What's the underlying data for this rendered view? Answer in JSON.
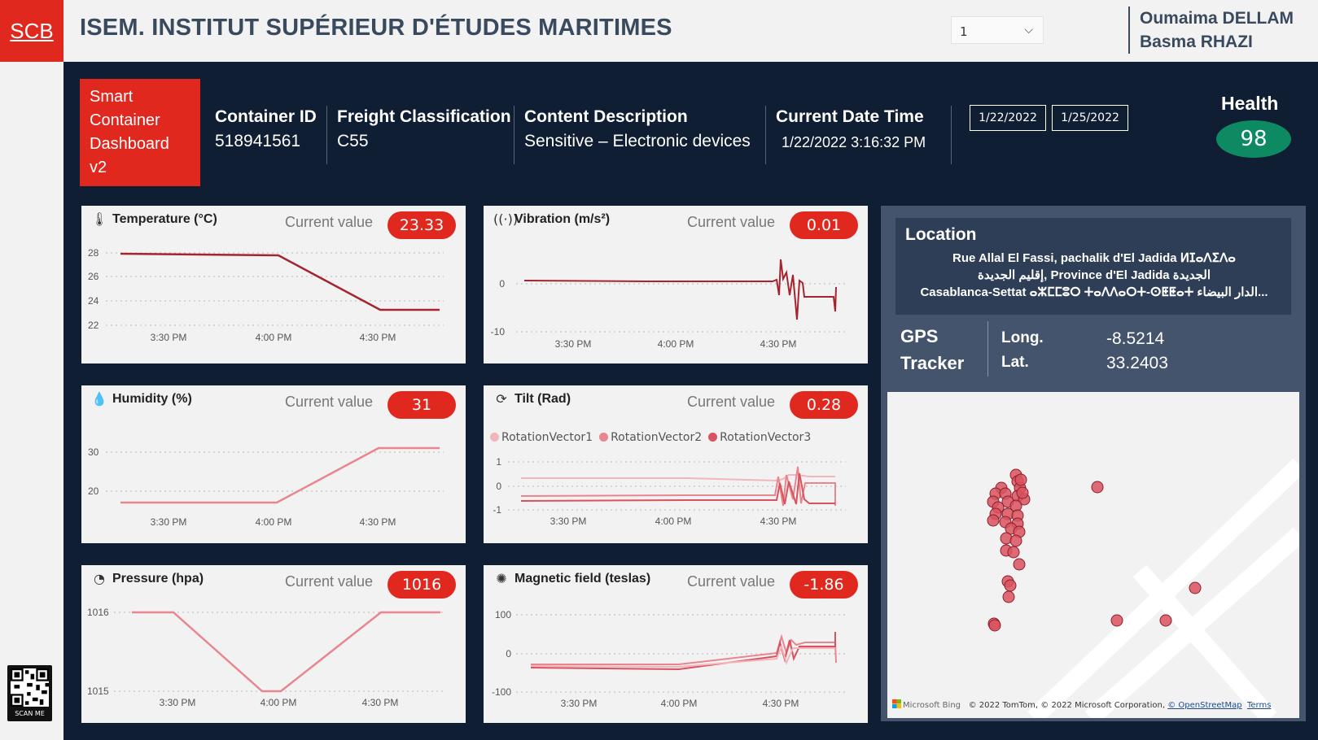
{
  "header": {
    "logo": "SCB",
    "title": "ISEM. INSTITUT SUPÉRIEUR D'ÉTUDES MARITIMES",
    "page_select": "1",
    "authors": [
      "Oumaima DELLAM",
      "Basma RHAZI"
    ]
  },
  "dashboard": {
    "badge_lines": [
      "Smart",
      "Container",
      "Dashboard",
      "v2"
    ],
    "container_id": {
      "label": "Container ID",
      "value": "518941561"
    },
    "freight": {
      "label": "Freight Classification",
      "value": "C55"
    },
    "content": {
      "label": "Content Description",
      "value": "Sensitive – Electronic devices"
    },
    "datetime": {
      "label": "Current Date Time",
      "value": "1/22/2022 3:16:32 PM"
    },
    "date_from": "1/22/2022",
    "date_to": "1/25/2022",
    "health": {
      "label": "Health",
      "value": "98",
      "color": "#0e8a62"
    }
  },
  "cards": {
    "current_value_label": "Current value",
    "temperature": {
      "title": "Temperature (°C)",
      "value": "23.33"
    },
    "vibration": {
      "title": "Vibration (m/s²)",
      "value": "0.01"
    },
    "humidity": {
      "title": "Humidity (%)",
      "value": "31"
    },
    "tilt": {
      "title": "Tilt (Rad)",
      "value": "0.28",
      "legend": [
        "RotationVector1",
        "RotationVector2",
        "RotationVector3"
      ]
    },
    "pressure": {
      "title": "Pressure (hpa)",
      "value": "1016"
    },
    "magnetic": {
      "title": "Magnetic field (teslas)",
      "value": "-1.86"
    }
  },
  "colors": {
    "accent": "#e0281f",
    "navy": "#0f1e33",
    "line_dark": "#a4252f",
    "line_light": "#e8868f"
  },
  "chart_data": [
    {
      "id": "temperature",
      "type": "line",
      "x_ticks": [
        "3:30 PM",
        "4:00 PM",
        "4:30 PM"
      ],
      "y_ticks": [
        "28",
        "26",
        "24",
        "22"
      ],
      "ylim": [
        22,
        28
      ],
      "series": [
        {
          "x": [
            "3:16 PM",
            "4:00 PM",
            "4:30 PM",
            "4:48 PM"
          ],
          "values": [
            28,
            27.9,
            23.3,
            23.3
          ]
        }
      ]
    },
    {
      "id": "vibration",
      "type": "line",
      "x_ticks": [
        "3:30 PM",
        "4:00 PM",
        "4:30 PM"
      ],
      "y_ticks": [
        "0",
        "-10"
      ],
      "ylim": [
        -10,
        0
      ]
    },
    {
      "id": "humidity",
      "type": "line",
      "x_ticks": [
        "3:30 PM",
        "4:00 PM",
        "4:30 PM"
      ],
      "y_ticks": [
        "30",
        "20"
      ],
      "ylim": [
        20,
        30
      ],
      "series": [
        {
          "x": [
            "3:16 PM",
            "4:00 PM",
            "4:30 PM",
            "4:48 PM"
          ],
          "values": [
            17.5,
            17.5,
            31,
            31
          ]
        }
      ]
    },
    {
      "id": "tilt",
      "type": "line",
      "x_ticks": [
        "3:30 PM",
        "4:00 PM",
        "4:30 PM"
      ],
      "y_ticks": [
        "1",
        "0",
        "-1"
      ],
      "ylim": [
        -1,
        1
      ]
    },
    {
      "id": "pressure",
      "type": "line",
      "x_ticks": [
        "3:30 PM",
        "4:00 PM",
        "4:30 PM"
      ],
      "y_ticks": [
        "1016",
        "1015"
      ],
      "ylim": [
        1015,
        1016
      ],
      "series": [
        {
          "x": [
            "3:16 PM",
            "3:30 PM",
            "3:55 PM",
            "4:00 PM",
            "4:30 PM",
            "4:48 PM"
          ],
          "values": [
            1016,
            1016,
            1015,
            1015,
            1016,
            1016
          ]
        }
      ]
    },
    {
      "id": "magnetic",
      "type": "line",
      "x_ticks": [
        "3:30 PM",
        "4:00 PM",
        "4:30 PM"
      ],
      "y_ticks": [
        "100",
        "0",
        "-100"
      ],
      "ylim": [
        -100,
        100
      ]
    }
  ],
  "location": {
    "title": "Location",
    "lines": [
      "Rue Allal El Fassi, pachalik d'El Jadida ⵍⵊⴰⴷⵉⴷⴰ",
      "إقليم الجديدة, Province d'El Jadida الجديدة",
      "Casablanca-Settat ⴰⵣⵎⵎⵓⵔ ⵜⴰⴷⴷⴰⵔⵜ-ⵙⵟⵟⴰⵜ الدار البيضاء..."
    ],
    "gps_title": [
      "GPS",
      "Tracker"
    ],
    "long_label": "Long.",
    "long_value": "-8.5214",
    "lat_label": "Lat.",
    "lat_value": "33.2403",
    "map_credit": "© 2022 TomTom, © 2022 Microsoft Corporation,",
    "map_credit_link": "© OpenStreetMap",
    "map_terms": "Terms",
    "bing": "Microsoft Bing"
  },
  "qr_caption": "SCAN ME"
}
